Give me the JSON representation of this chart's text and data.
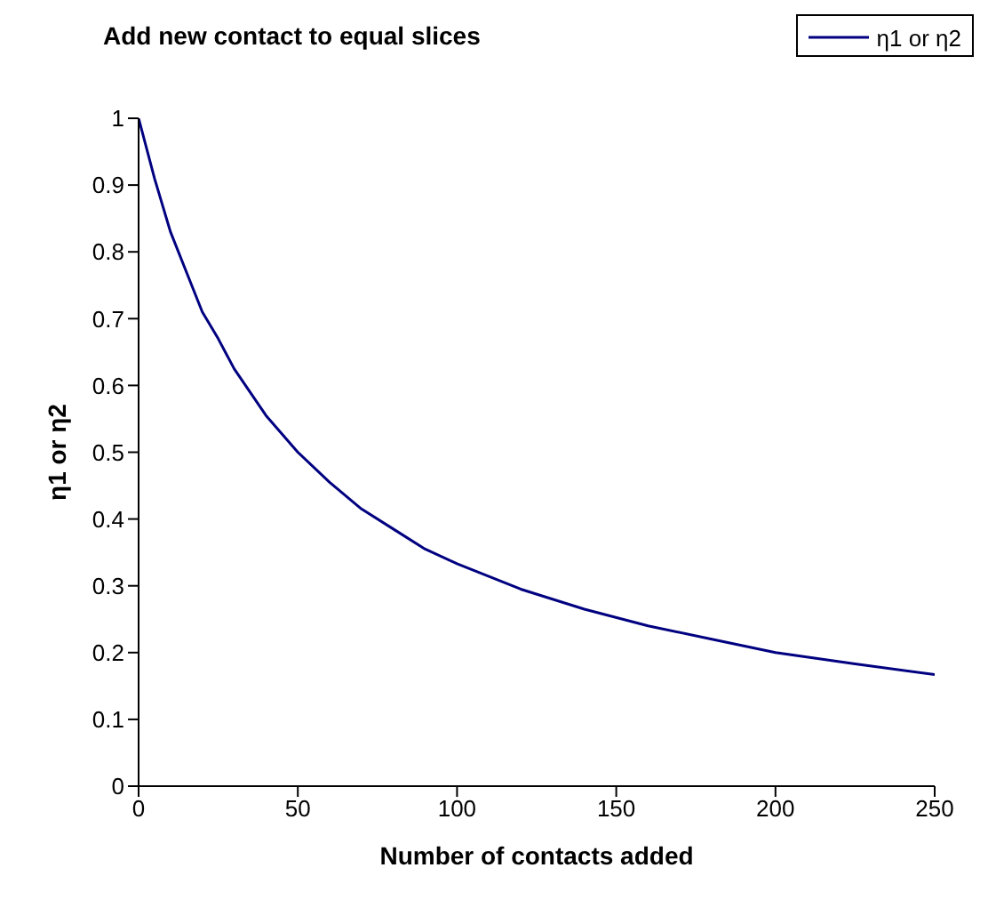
{
  "chart_data": {
    "type": "line",
    "title": "Add new contact to equal slices",
    "xlabel": "Number of contacts added",
    "ylabel": "η1 or η2",
    "x": [
      0,
      5,
      10,
      15,
      20,
      25,
      30,
      40,
      50,
      60,
      70,
      80,
      90,
      100,
      120,
      140,
      160,
      180,
      200,
      225,
      250
    ],
    "series": [
      {
        "name": "η1 or η2",
        "color": "#000080",
        "values": [
          1,
          0.91,
          0.83,
          0.77,
          0.71,
          0.67,
          0.625,
          0.555,
          0.5,
          0.455,
          0.415,
          0.385,
          0.355,
          0.333,
          0.295,
          0.265,
          0.24,
          0.22,
          0.2,
          0.183,
          0.167
        ]
      }
    ],
    "xlim": [
      0,
      250
    ],
    "xticks": [
      0,
      50,
      100,
      150,
      200,
      250
    ],
    "ylim": [
      0,
      1
    ],
    "yticks": [
      0,
      0.1,
      0.2,
      0.3,
      0.4,
      0.5,
      0.6,
      0.7,
      0.8,
      0.9,
      1
    ],
    "grid": false,
    "legend": "top right",
    "marker": "none",
    "line_style": "solid"
  }
}
